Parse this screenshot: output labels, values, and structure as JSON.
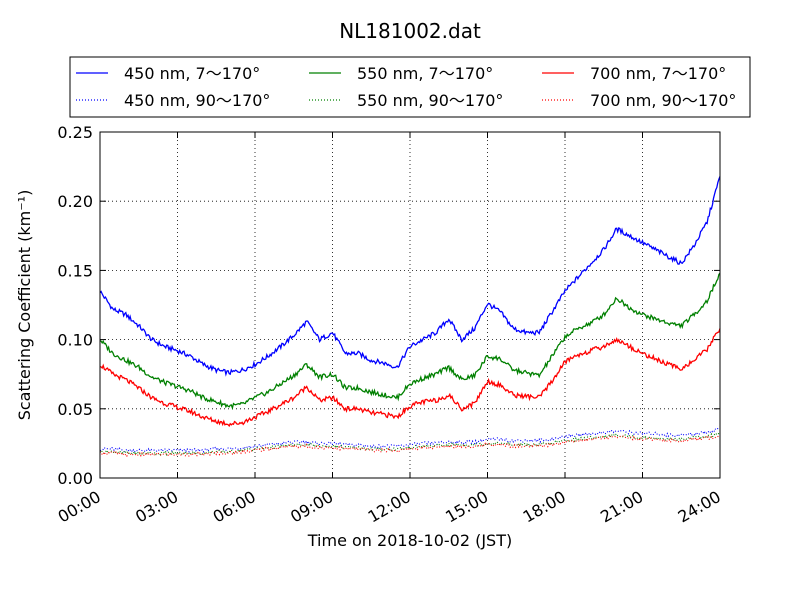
{
  "chart_data": {
    "type": "line",
    "title": "NL181002.dat",
    "xlabel": "Time on 2018-10-02 (JST)",
    "ylabel": "Scattering Coefficient (km⁻¹)",
    "xlim": [
      0,
      24
    ],
    "ylim": [
      0,
      0.25
    ],
    "grid": true,
    "legend_position": "top",
    "x_tick_labels": [
      "00:00",
      "03:00",
      "06:00",
      "09:00",
      "12:00",
      "15:00",
      "18:00",
      "21:00",
      "24:00"
    ],
    "y_tick_labels": [
      "0.00",
      "0.05",
      "0.10",
      "0.15",
      "0.20",
      "0.25"
    ],
    "x_hours": [
      0,
      0.5,
      1,
      1.5,
      2,
      2.5,
      3,
      3.5,
      4,
      4.5,
      5,
      5.5,
      6,
      6.5,
      7,
      7.5,
      8,
      8.5,
      9,
      9.5,
      10,
      10.5,
      11,
      11.5,
      12,
      12.5,
      13,
      13.5,
      14,
      14.5,
      15,
      15.5,
      16,
      16.5,
      17,
      17.5,
      18,
      18.5,
      19,
      19.5,
      20,
      20.5,
      21,
      21.5,
      22,
      22.5,
      23,
      23.5,
      24
    ],
    "series": [
      {
        "name": "450 nm, 7～170°",
        "color": "#0000ff",
        "style": "solid",
        "values": [
          0.135,
          0.122,
          0.118,
          0.11,
          0.1,
          0.095,
          0.092,
          0.088,
          0.082,
          0.078,
          0.076,
          0.078,
          0.082,
          0.088,
          0.095,
          0.103,
          0.113,
          0.1,
          0.105,
          0.09,
          0.09,
          0.085,
          0.083,
          0.08,
          0.095,
          0.1,
          0.105,
          0.115,
          0.1,
          0.108,
          0.126,
          0.12,
          0.108,
          0.105,
          0.105,
          0.12,
          0.135,
          0.145,
          0.155,
          0.165,
          0.18,
          0.175,
          0.17,
          0.165,
          0.16,
          0.155,
          0.168,
          0.185,
          0.218
        ]
      },
      {
        "name": "450 nm, 90～170°",
        "color": "#0000ff",
        "style": "dotted",
        "values": [
          0.021,
          0.021,
          0.02,
          0.02,
          0.02,
          0.02,
          0.02,
          0.02,
          0.02,
          0.021,
          0.021,
          0.022,
          0.023,
          0.024,
          0.025,
          0.026,
          0.026,
          0.025,
          0.025,
          0.024,
          0.024,
          0.023,
          0.023,
          0.023,
          0.024,
          0.025,
          0.025,
          0.026,
          0.026,
          0.026,
          0.028,
          0.028,
          0.027,
          0.027,
          0.027,
          0.028,
          0.03,
          0.031,
          0.032,
          0.033,
          0.034,
          0.033,
          0.032,
          0.032,
          0.031,
          0.031,
          0.032,
          0.033,
          0.036
        ]
      },
      {
        "name": "550 nm, 7～170°",
        "color": "#008000",
        "style": "solid",
        "values": [
          0.1,
          0.09,
          0.085,
          0.08,
          0.073,
          0.069,
          0.066,
          0.063,
          0.058,
          0.055,
          0.052,
          0.053,
          0.058,
          0.062,
          0.068,
          0.074,
          0.082,
          0.073,
          0.075,
          0.065,
          0.065,
          0.062,
          0.06,
          0.058,
          0.068,
          0.072,
          0.075,
          0.08,
          0.071,
          0.074,
          0.088,
          0.086,
          0.078,
          0.076,
          0.074,
          0.088,
          0.102,
          0.108,
          0.112,
          0.118,
          0.13,
          0.123,
          0.118,
          0.115,
          0.112,
          0.11,
          0.118,
          0.128,
          0.148
        ]
      },
      {
        "name": "550 nm, 90～170°",
        "color": "#008000",
        "style": "dotted",
        "values": [
          0.019,
          0.019,
          0.018,
          0.018,
          0.018,
          0.018,
          0.018,
          0.018,
          0.018,
          0.019,
          0.019,
          0.02,
          0.021,
          0.022,
          0.023,
          0.024,
          0.024,
          0.023,
          0.023,
          0.022,
          0.022,
          0.021,
          0.021,
          0.021,
          0.022,
          0.023,
          0.023,
          0.024,
          0.024,
          0.024,
          0.025,
          0.025,
          0.024,
          0.024,
          0.024,
          0.025,
          0.027,
          0.028,
          0.029,
          0.03,
          0.031,
          0.03,
          0.029,
          0.029,
          0.028,
          0.028,
          0.029,
          0.03,
          0.032
        ]
      },
      {
        "name": "700 nm, 7～170°",
        "color": "#ff0000",
        "style": "solid",
        "values": [
          0.082,
          0.075,
          0.071,
          0.065,
          0.058,
          0.054,
          0.051,
          0.048,
          0.044,
          0.041,
          0.039,
          0.04,
          0.044,
          0.048,
          0.053,
          0.058,
          0.066,
          0.056,
          0.058,
          0.05,
          0.05,
          0.047,
          0.046,
          0.044,
          0.052,
          0.055,
          0.056,
          0.06,
          0.05,
          0.054,
          0.07,
          0.067,
          0.06,
          0.059,
          0.058,
          0.07,
          0.084,
          0.089,
          0.092,
          0.095,
          0.1,
          0.095,
          0.09,
          0.086,
          0.082,
          0.079,
          0.085,
          0.093,
          0.108
        ]
      },
      {
        "name": "700 nm, 90～170°",
        "color": "#ff0000",
        "style": "dotted",
        "values": [
          0.018,
          0.018,
          0.017,
          0.017,
          0.017,
          0.017,
          0.017,
          0.017,
          0.017,
          0.018,
          0.018,
          0.019,
          0.02,
          0.021,
          0.022,
          0.023,
          0.023,
          0.022,
          0.022,
          0.021,
          0.021,
          0.02,
          0.02,
          0.02,
          0.021,
          0.022,
          0.022,
          0.023,
          0.023,
          0.023,
          0.024,
          0.024,
          0.023,
          0.023,
          0.023,
          0.024,
          0.026,
          0.027,
          0.028,
          0.029,
          0.03,
          0.029,
          0.028,
          0.028,
          0.027,
          0.027,
          0.028,
          0.029,
          0.03
        ]
      }
    ]
  }
}
